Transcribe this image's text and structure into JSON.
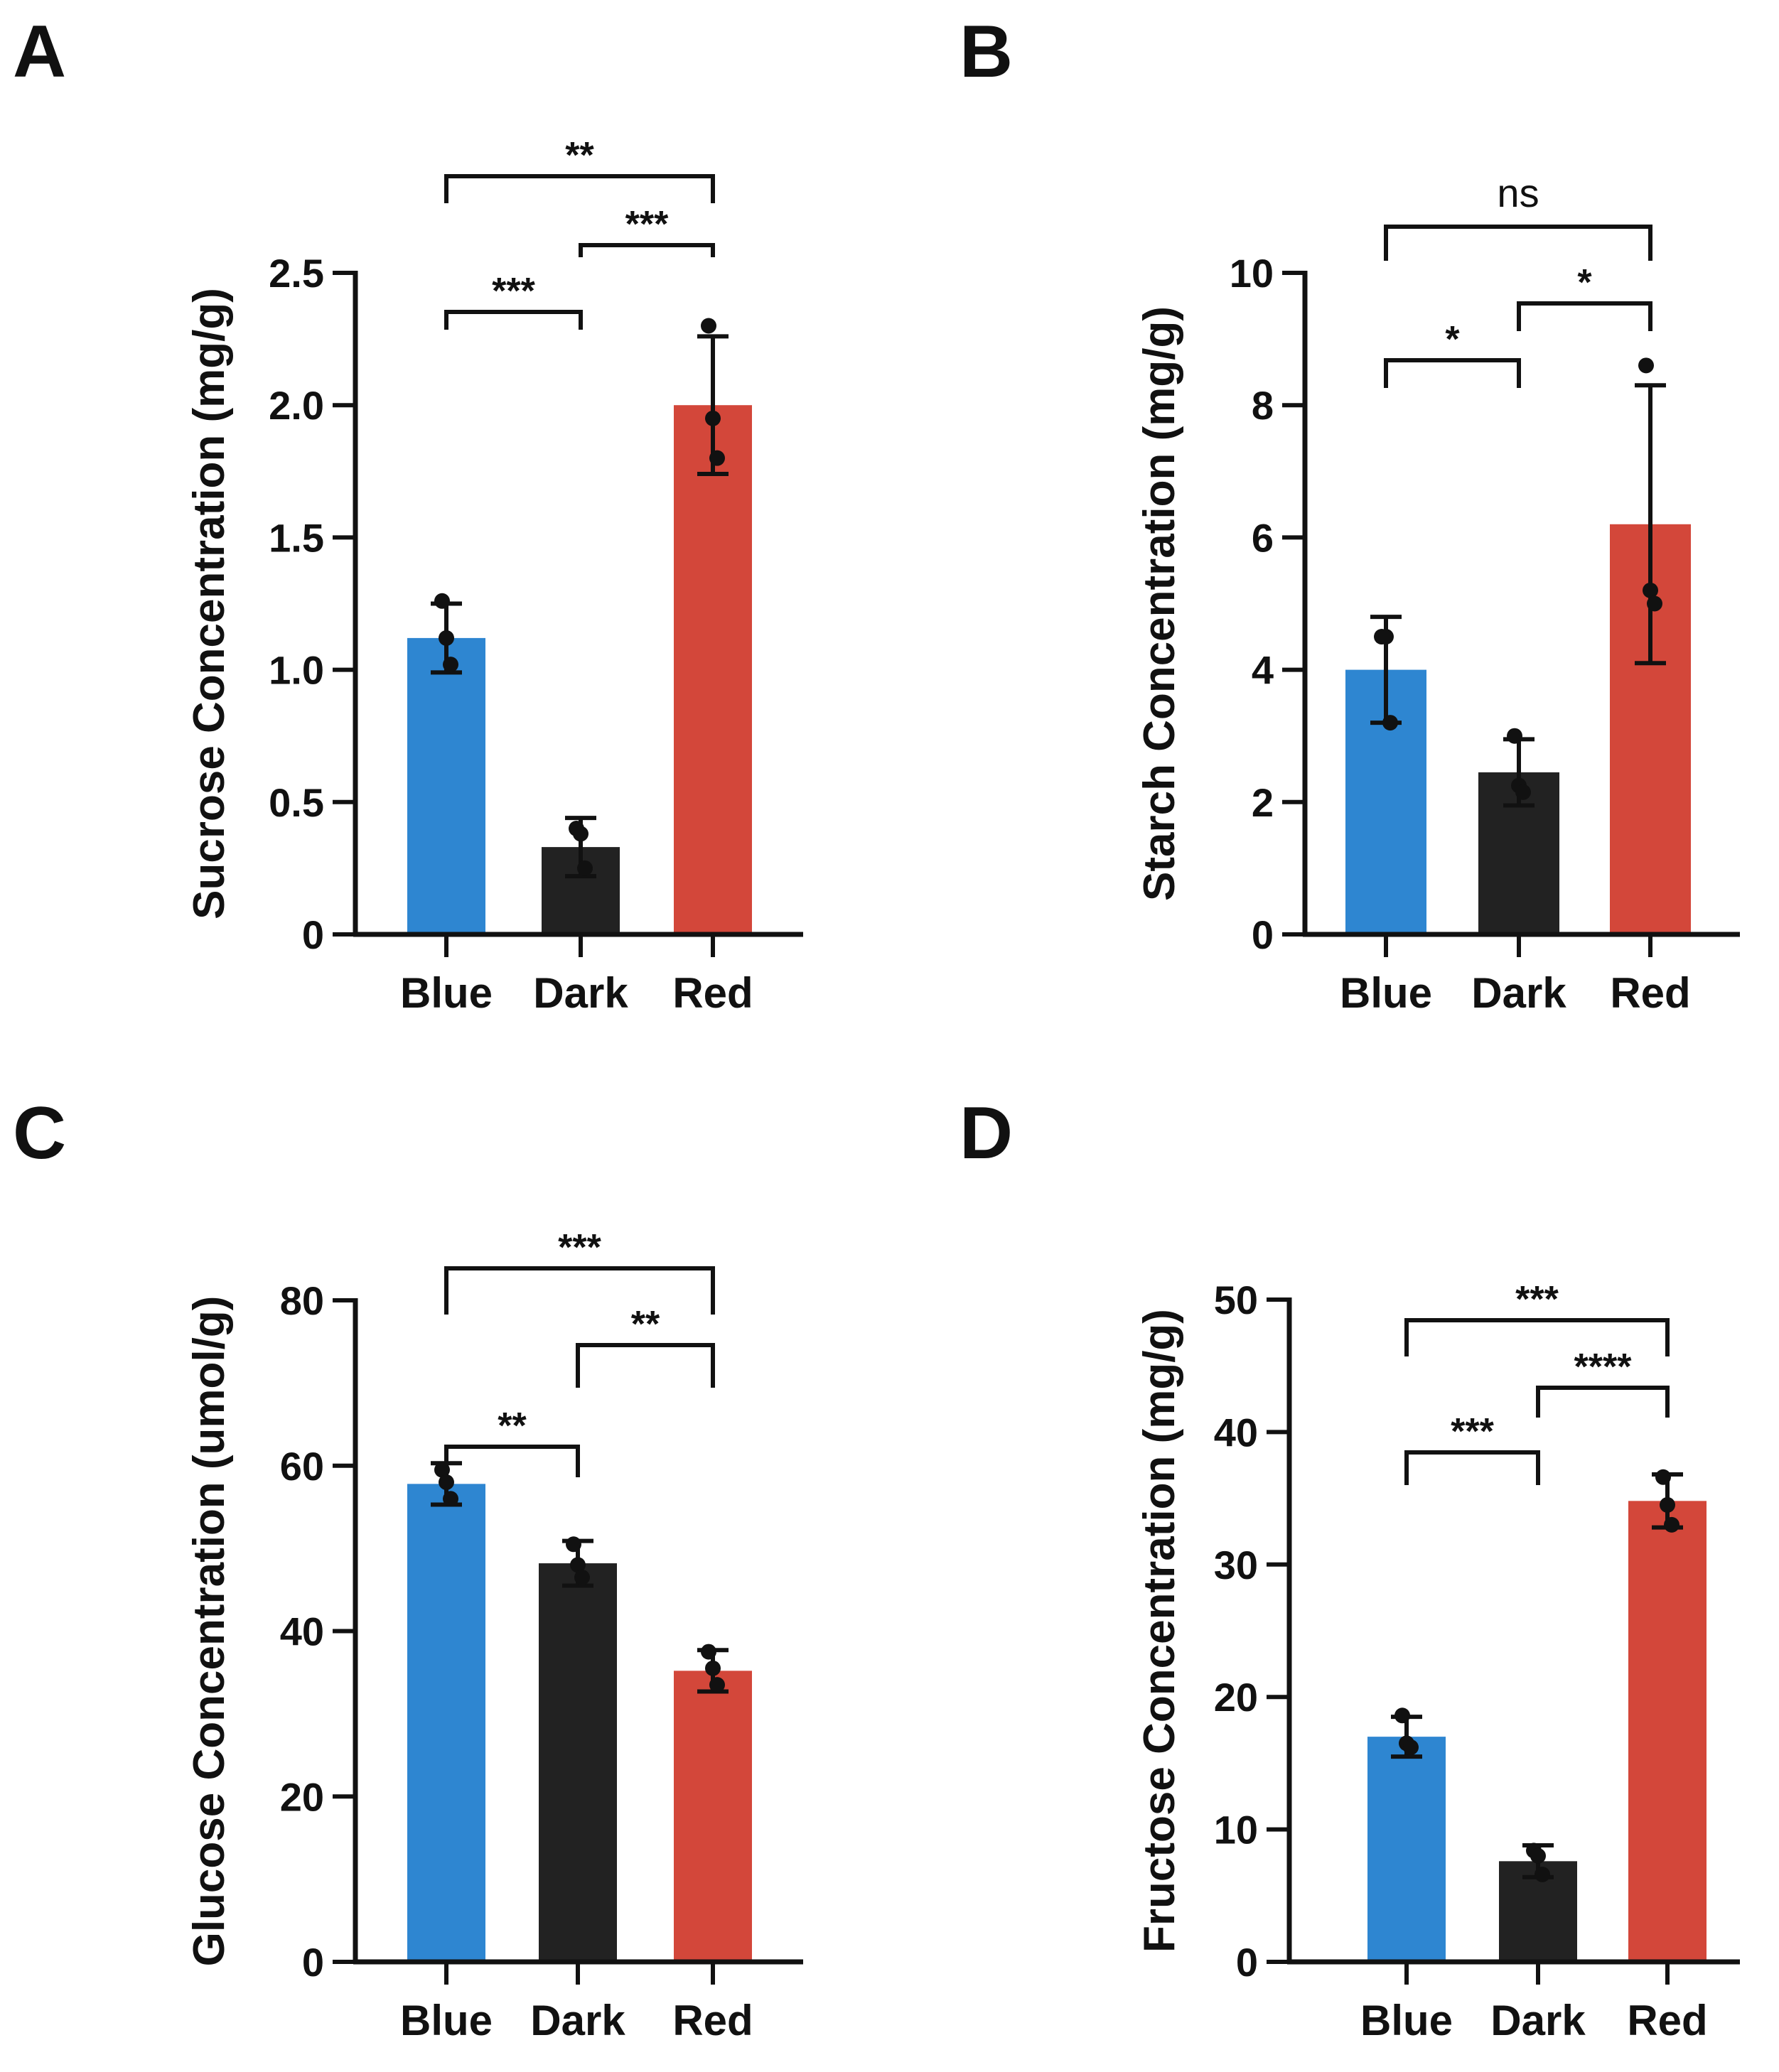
{
  "chart_data": [
    {
      "panel": "A",
      "type": "bar",
      "ylabel": "Sucrose Concentration (mg/g)",
      "xlabel": "",
      "ylim": [
        0,
        2.5
      ],
      "yticks": [
        0,
        0.5,
        1.0,
        1.5,
        2.0,
        2.5
      ],
      "ytick_labels": [
        "0",
        "0.5",
        "1.0",
        "1.5",
        "2.0",
        "2.5"
      ],
      "categories": [
        "Blue",
        "Dark",
        "Red"
      ],
      "colors": [
        "#2e86d1",
        "#222222",
        "#d3473a"
      ],
      "values": [
        1.12,
        0.33,
        2.0
      ],
      "errors": [
        0.13,
        0.11,
        0.26
      ],
      "points": [
        [
          1.26,
          1.12,
          1.02
        ],
        [
          0.4,
          0.38,
          0.25
        ],
        [
          2.3,
          1.95,
          1.8
        ]
      ],
      "significance": [
        {
          "from": 0,
          "to": 1,
          "label": "***"
        },
        {
          "from": 1,
          "to": 2,
          "label": "***"
        },
        {
          "from": 0,
          "to": 2,
          "label": "**"
        }
      ]
    },
    {
      "panel": "B",
      "type": "bar",
      "ylabel": "Starch Concentration (mg/g)",
      "xlabel": "",
      "ylim": [
        0,
        10
      ],
      "yticks": [
        0,
        2,
        4,
        6,
        8,
        10
      ],
      "ytick_labels": [
        "0",
        "2",
        "4",
        "6",
        "8",
        "10"
      ],
      "categories": [
        "Blue",
        "Dark",
        "Red"
      ],
      "colors": [
        "#2e86d1",
        "#222222",
        "#d3473a"
      ],
      "values": [
        4.0,
        2.45,
        6.2
      ],
      "errors": [
        0.8,
        0.5,
        2.1
      ],
      "points": [
        [
          4.5,
          4.5,
          3.2
        ],
        [
          3.0,
          2.25,
          2.15
        ],
        [
          8.6,
          5.2,
          5.0
        ]
      ],
      "significance": [
        {
          "from": 0,
          "to": 1,
          "label": "*"
        },
        {
          "from": 1,
          "to": 2,
          "label": "*"
        },
        {
          "from": 0,
          "to": 2,
          "label": "ns"
        }
      ]
    },
    {
      "panel": "C",
      "type": "bar",
      "ylabel": "Glucose Concentration (umol/g)",
      "xlabel": "",
      "ylim": [
        0,
        80
      ],
      "yticks": [
        0,
        20,
        40,
        60,
        80
      ],
      "ytick_labels": [
        "0",
        "20",
        "40",
        "60",
        "80"
      ],
      "categories": [
        "Blue",
        "Dark",
        "Red"
      ],
      "colors": [
        "#2e86d1",
        "#222222",
        "#d3473a"
      ],
      "values": [
        57.8,
        48.2,
        35.2
      ],
      "errors": [
        2.5,
        2.7,
        2.5
      ],
      "points": [
        [
          59.5,
          58.0,
          56.0
        ],
        [
          50.5,
          48.0,
          46.5
        ],
        [
          37.5,
          35.5,
          33.5
        ]
      ],
      "significance": [
        {
          "from": 0,
          "to": 1,
          "label": "**"
        },
        {
          "from": 1,
          "to": 2,
          "label": "**"
        },
        {
          "from": 0,
          "to": 2,
          "label": "***"
        }
      ]
    },
    {
      "panel": "D",
      "type": "bar",
      "ylabel": "Fructose Concentration (mg/g)",
      "xlabel": "",
      "ylim": [
        0,
        50
      ],
      "yticks": [
        0,
        10,
        20,
        30,
        40,
        50
      ],
      "ytick_labels": [
        "0",
        "10",
        "20",
        "30",
        "40",
        "50"
      ],
      "categories": [
        "Blue",
        "Dark",
        "Red"
      ],
      "colors": [
        "#2e86d1",
        "#222222",
        "#d3473a"
      ],
      "values": [
        17.0,
        7.6,
        34.8
      ],
      "errors": [
        1.5,
        1.2,
        2.0
      ],
      "points": [
        [
          18.6,
          16.5,
          16.2
        ],
        [
          8.4,
          8.0,
          6.6
        ],
        [
          36.6,
          34.5,
          33.0
        ]
      ],
      "significance": [
        {
          "from": 0,
          "to": 1,
          "label": "***"
        },
        {
          "from": 1,
          "to": 2,
          "label": "****"
        },
        {
          "from": 0,
          "to": 2,
          "label": "***"
        }
      ]
    }
  ]
}
